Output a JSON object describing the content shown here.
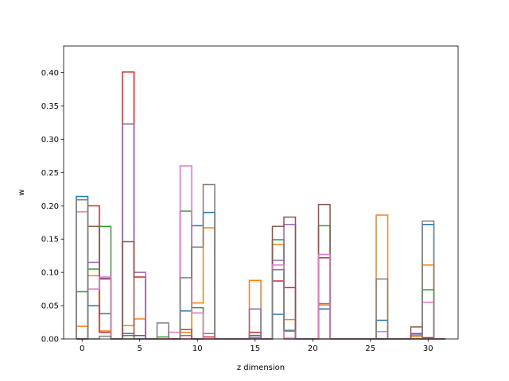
{
  "chart_data": {
    "type": "bar",
    "histtype": "step",
    "xlabel": "z dimension",
    "ylabel": "w",
    "xlim": [
      -1.6,
      32.6
    ],
    "ylim": [
      0,
      0.44
    ],
    "xticks": [
      0,
      5,
      10,
      15,
      20,
      25,
      30
    ],
    "yticks": [
      0.0,
      0.05,
      0.1,
      0.15,
      0.2,
      0.25,
      0.3,
      0.35,
      0.4
    ],
    "bins": [
      0,
      1,
      2,
      3,
      4,
      5,
      6,
      7,
      8,
      9,
      10,
      11,
      12,
      13,
      14,
      15,
      16,
      17,
      18,
      19,
      20,
      21,
      22,
      23,
      24,
      25,
      26,
      27,
      28,
      29,
      30,
      31
    ],
    "series": [
      {
        "color": "#1f77b4",
        "values": [
          0.214,
          0.05,
          0.038,
          0,
          0.008,
          0.005,
          0,
          0,
          0,
          0.042,
          0.17,
          0.19,
          0,
          0,
          0,
          0.005,
          0,
          0.037,
          0.012,
          0,
          0,
          0.045,
          0,
          0,
          0,
          0,
          0.028,
          0,
          0,
          0.008,
          0.172,
          0
        ]
      },
      {
        "color": "#ff7f0e",
        "values": [
          0.019,
          0.095,
          0.012,
          0,
          0.02,
          0.03,
          0,
          0,
          0,
          0.01,
          0.054,
          0.167,
          0,
          0,
          0,
          0.088,
          0,
          0.142,
          0.029,
          0,
          0,
          0.051,
          0,
          0,
          0,
          0,
          0.186,
          0,
          0,
          0.004,
          0.111,
          0
        ]
      },
      {
        "color": "#2ca02c",
        "values": [
          0.071,
          0.105,
          0.169,
          0,
          0.005,
          0,
          0,
          0.003,
          0,
          0.192,
          0.047,
          0,
          0,
          0,
          0,
          0,
          0,
          0.149,
          0,
          0,
          0,
          0.17,
          0,
          0,
          0,
          0,
          0,
          0,
          0,
          0,
          0.074,
          0
        ]
      },
      {
        "color": "#d62728",
        "values": [
          0,
          0.2,
          0.01,
          0,
          0.401,
          0.093,
          0,
          0,
          0,
          0,
          0,
          0.003,
          0,
          0,
          0,
          0.01,
          0,
          0.087,
          0.077,
          0,
          0,
          0.122,
          0,
          0,
          0,
          0,
          0,
          0,
          0,
          0,
          0.002,
          0
        ]
      },
      {
        "color": "#9467bd",
        "values": [
          0,
          0.115,
          0.091,
          0,
          0.323,
          0.1,
          0,
          0,
          0,
          0.005,
          0,
          0.008,
          0,
          0,
          0,
          0.045,
          0,
          0.118,
          0.172,
          0,
          0,
          0.053,
          0,
          0,
          0,
          0,
          0,
          0,
          0,
          0.006,
          0,
          0
        ]
      },
      {
        "color": "#8c564b",
        "values": [
          0,
          0.169,
          0.09,
          0,
          0.146,
          0,
          0,
          0,
          0,
          0.014,
          0,
          0,
          0,
          0,
          0,
          0,
          0,
          0.169,
          0.183,
          0,
          0,
          0.202,
          0,
          0,
          0,
          0,
          0,
          0,
          0,
          0.018,
          0,
          0
        ]
      },
      {
        "color": "#e377c2",
        "values": [
          0.191,
          0.075,
          0.093,
          0,
          0,
          0,
          0,
          0,
          0.01,
          0.26,
          0.039,
          0,
          0,
          0,
          0,
          0,
          0,
          0.111,
          0.001,
          0,
          0,
          0.127,
          0,
          0,
          0,
          0,
          0.011,
          0,
          0,
          0,
          0.055,
          0
        ]
      },
      {
        "color": "#7f7f7f",
        "values": [
          0.209,
          0,
          0.004,
          0,
          0,
          0,
          0,
          0.024,
          0,
          0.092,
          0.138,
          0.232,
          0,
          0,
          0,
          0.002,
          0,
          0.104,
          0.013,
          0,
          0,
          0,
          0,
          0,
          0,
          0,
          0.09,
          0,
          0,
          0,
          0.177,
          0
        ]
      }
    ]
  }
}
